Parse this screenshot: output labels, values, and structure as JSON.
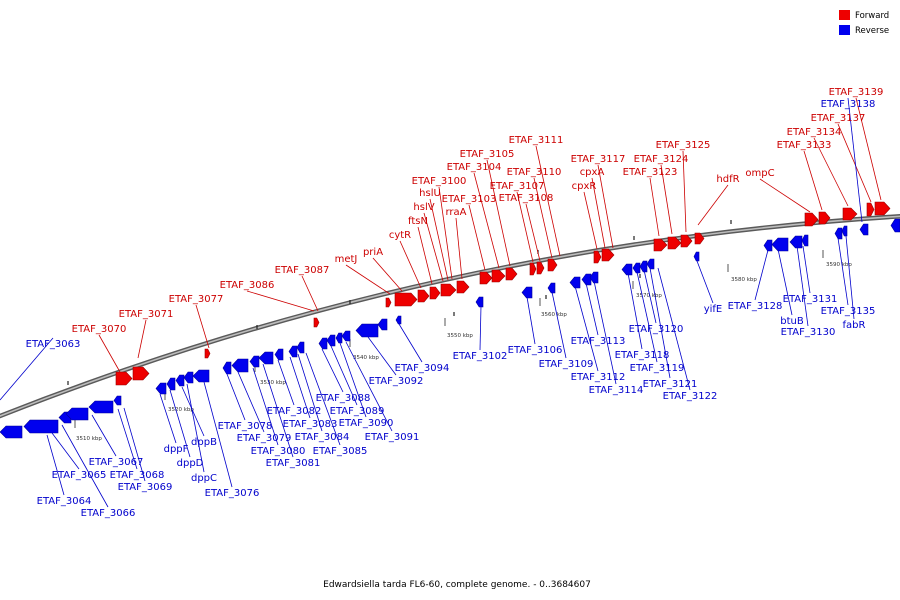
{
  "caption": "Edwardsiella tarda FL6-60, complete genome. - 0..3684607",
  "legend": [
    {
      "label": "Forward",
      "color": "#ee0000"
    },
    {
      "label": "Reverse",
      "color": "#0000ee"
    }
  ],
  "tick_labels": [
    "3510 kbp",
    "3520 kbp",
    "3530 kbp",
    "3540 kbp",
    "3550 kbp",
    "3560 kbp",
    "3570 kbp",
    "3580 kbp",
    "3590 kbp"
  ],
  "genes_forward": [
    "ETAF_3070",
    "ETAF_3071",
    "ETAF_3077",
    "ETAF_3086",
    "ETAF_3087",
    "metJ",
    "priA",
    "cytR",
    "ftsN",
    "hslV",
    "hslU",
    "ETAF_3100",
    "rraA",
    "ETAF_3103",
    "ETAF_3104",
    "ETAF_3105",
    "ETAF_3107",
    "ETAF_3108",
    "ETAF_3110",
    "ETAF_3111",
    "cpxR",
    "cpxA",
    "ETAF_3117",
    "ETAF_3123",
    "ETAF_3124",
    "ETAF_3125",
    "hdfR",
    "ompC",
    "ETAF_3133",
    "ETAF_3134",
    "ETAF_3137",
    "ETAF_3139"
  ],
  "genes_reverse": [
    "ETAF_3063",
    "ETAF_3064",
    "ETAF_3065",
    "ETAF_3066",
    "ETAF_3067",
    "ETAF_3068",
    "ETAF_3069",
    "dppF",
    "dppD",
    "dppB",
    "dppC",
    "ETAF_3076",
    "ETAF_3078",
    "ETAF_3079",
    "ETAF_3080",
    "ETAF_3081",
    "ETAF_3082",
    "ETAF_3083",
    "ETAF_3084",
    "ETAF_3085",
    "ETAF_3088",
    "ETAF_3089",
    "ETAF_3090",
    "ETAF_3091",
    "ETAF_3092",
    "ETAF_3094",
    "ETAF_3102",
    "ETAF_3106",
    "ETAF_3109",
    "ETAF_3112",
    "ETAF_3113",
    "ETAF_3114",
    "ETAF_3118",
    "ETAF_3119",
    "ETAF_3120",
    "ETAF_3121",
    "ETAF_3122",
    "yifE",
    "ETAF_3128",
    "btuB",
    "ETAF_3130",
    "ETAF_3131",
    "ETAF_3135",
    "fabR",
    "ETAF_3138"
  ]
}
